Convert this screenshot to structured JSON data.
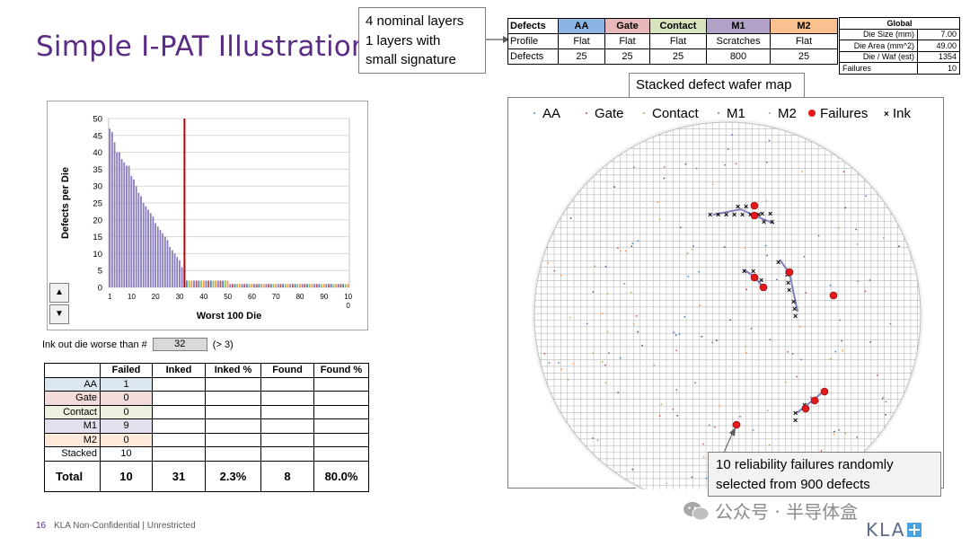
{
  "slide": {
    "title": "Simple I-PAT Illustration",
    "page_number": "16",
    "footer": "KLA Non-Confidential | Unrestricted"
  },
  "callout": {
    "lines": [
      "4 nominal layers",
      "1 layers with",
      "small signature"
    ]
  },
  "defects_table": {
    "headers": [
      "Defects",
      "AA",
      "Gate",
      "Contact",
      "M1",
      "M2"
    ],
    "header_colors": [
      "#ffffff",
      "#8db4e2",
      "#e6b9b8",
      "#d7e4bd",
      "#b3a2c7",
      "#fac090"
    ],
    "rows": [
      {
        "label": "Profile",
        "values": [
          "Flat",
          "Flat",
          "Flat",
          "Scratches",
          "Flat"
        ]
      },
      {
        "label": "Defects",
        "values": [
          "25",
          "25",
          "25",
          "800",
          "25"
        ]
      }
    ]
  },
  "global_table": {
    "title": "Global",
    "rows": [
      {
        "label": "Die Size (mm)",
        "value": "7.00"
      },
      {
        "label": "Die Area (mm^2)",
        "value": "49.00"
      },
      {
        "label": "Die / Waf (est)",
        "value": "1354"
      },
      {
        "label": "Failures",
        "value": "10"
      }
    ]
  },
  "wafer_label": "Stacked defect wafer map",
  "wafer_legend": [
    "AA",
    "Gate",
    "Contact",
    "M1",
    "M2",
    "Failures",
    "Ink"
  ],
  "ink_row": {
    "label": "Ink out die worse than #",
    "value": "32",
    "note": "(> 3)"
  },
  "results_table": {
    "headers": [
      "",
      "Failed",
      "Inked",
      "Inked %",
      "Found",
      "Found %"
    ],
    "rows": [
      {
        "label": "AA",
        "failed": "1",
        "color": "#dce6f1"
      },
      {
        "label": "Gate",
        "failed": "0",
        "color": "#f2dcdb"
      },
      {
        "label": "Contact",
        "failed": "0",
        "color": "#ebf1de"
      },
      {
        "label": "M1",
        "failed": "9",
        "color": "#e4dfec"
      },
      {
        "label": "M2",
        "failed": "0",
        "color": "#fde9d9"
      },
      {
        "label": "Stacked",
        "failed": "10",
        "color": "#ffffff"
      }
    ],
    "total": {
      "label": "Total",
      "failed": "10",
      "inked": "31",
      "inked_pct": "2.3%",
      "found": "8",
      "found_pct": "80.0%"
    }
  },
  "failure_note": [
    "10 reliability failures randomly",
    "selected from 900 defects"
  ],
  "watermark": "公众号 · 半导体盒",
  "logo": "KLA",
  "colors": {
    "title": "#5b2c83",
    "bar": "#8a7bbf",
    "bar_small": "#c9a24a",
    "threshold": "#c00000",
    "failure": "#e31a1c"
  },
  "chart_data": {
    "type": "bar",
    "title": "",
    "xlabel": "Worst 100 Die",
    "ylabel": "Defects per Die",
    "ylim": [
      0,
      50
    ],
    "xlim": [
      1,
      100
    ],
    "y_ticks": [
      0,
      5,
      10,
      15,
      20,
      25,
      30,
      35,
      40,
      45,
      50
    ],
    "x_tick_labels": [
      "1",
      "10",
      "20",
      "30",
      "40",
      "50",
      "60",
      "70",
      "80",
      "90",
      "10\n0"
    ],
    "threshold_x": 32,
    "values": [
      47,
      46,
      43,
      40,
      40,
      38,
      37,
      36,
      36,
      33,
      32,
      30,
      28,
      27,
      25,
      24,
      23,
      22,
      21,
      19,
      18,
      17,
      16,
      15,
      14,
      12,
      11,
      10,
      9,
      8,
      6,
      5,
      2,
      2,
      2,
      2,
      2,
      2,
      2,
      2,
      2,
      2,
      2,
      2,
      2,
      2,
      2,
      2,
      2,
      2,
      1,
      1,
      1,
      1,
      1,
      1,
      1,
      1,
      1,
      1,
      1,
      1,
      1,
      1,
      1,
      1,
      1,
      1,
      1,
      1,
      1,
      1,
      1,
      1,
      1,
      1,
      1,
      1,
      1,
      1,
      1,
      1,
      1,
      1,
      1,
      1,
      1,
      1,
      1,
      1,
      1,
      1,
      1,
      1,
      1,
      1,
      1,
      1,
      1,
      1
    ]
  }
}
